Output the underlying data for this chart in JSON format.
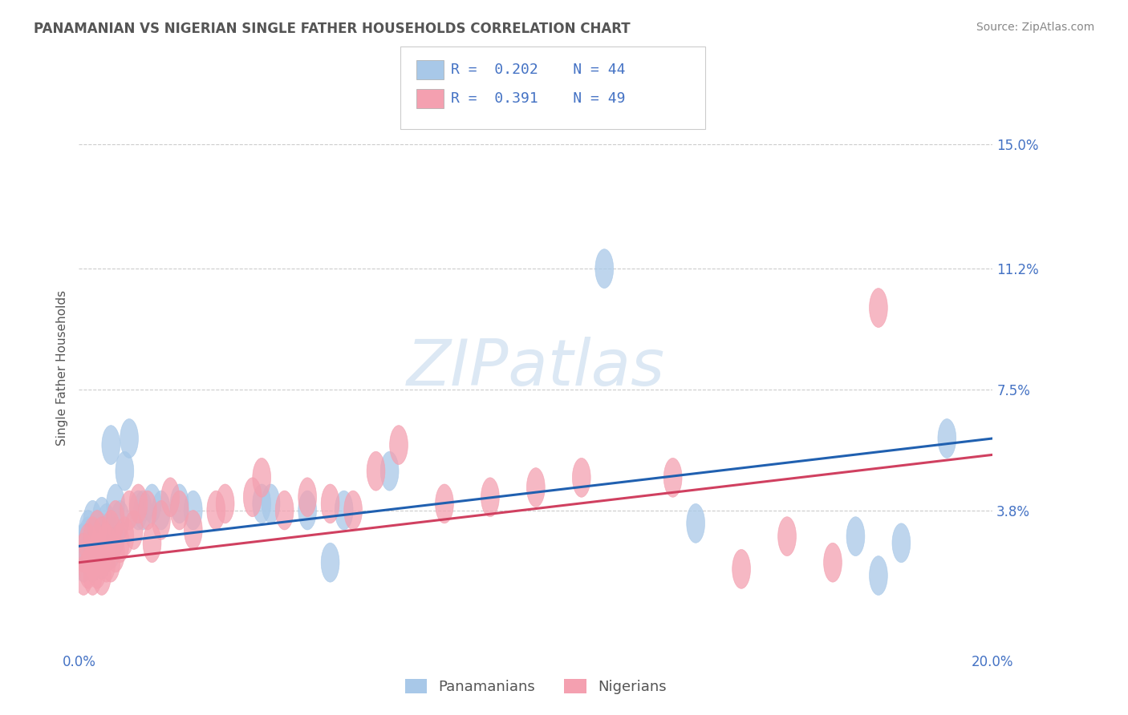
{
  "title": "PANAMANIAN VS NIGERIAN SINGLE FATHER HOUSEHOLDS CORRELATION CHART",
  "source": "Source: ZipAtlas.com",
  "ylabel": "Single Father Households",
  "y_tick_labels": [
    "3.8%",
    "7.5%",
    "11.2%",
    "15.0%"
  ],
  "y_tick_values": [
    0.038,
    0.075,
    0.112,
    0.15
  ],
  "xlim": [
    0.0,
    0.2
  ],
  "ylim": [
    -0.005,
    0.168
  ],
  "legend_labels": [
    "Panamanians",
    "Nigerians"
  ],
  "blue_color": "#a8c8e8",
  "pink_color": "#f4a0b0",
  "blue_line_color": "#2060b0",
  "pink_line_color": "#d04060",
  "text_color": "#4472c4",
  "watermark": "ZIPatlas",
  "watermark_color": "#dce8f4",
  "title_color": "#555555",
  "source_color": "#888888",
  "background_color": "#ffffff",
  "grid_color": "#cccccc",
  "panamanian_x": [
    0.001,
    0.001,
    0.002,
    0.002,
    0.002,
    0.003,
    0.003,
    0.003,
    0.003,
    0.004,
    0.004,
    0.004,
    0.005,
    0.005,
    0.005,
    0.005,
    0.006,
    0.006,
    0.006,
    0.007,
    0.007,
    0.008,
    0.008,
    0.009,
    0.01,
    0.011,
    0.013,
    0.014,
    0.016,
    0.018,
    0.022,
    0.025,
    0.04,
    0.042,
    0.05,
    0.055,
    0.058,
    0.068,
    0.115,
    0.135,
    0.17,
    0.175,
    0.18,
    0.19
  ],
  "panamanian_y": [
    0.022,
    0.028,
    0.025,
    0.03,
    0.032,
    0.022,
    0.026,
    0.03,
    0.035,
    0.024,
    0.028,
    0.032,
    0.023,
    0.027,
    0.031,
    0.036,
    0.025,
    0.03,
    0.034,
    0.026,
    0.058,
    0.03,
    0.04,
    0.035,
    0.05,
    0.06,
    0.038,
    0.038,
    0.04,
    0.038,
    0.04,
    0.038,
    0.04,
    0.04,
    0.038,
    0.022,
    0.038,
    0.05,
    0.112,
    0.034,
    0.03,
    0.018,
    0.028,
    0.06
  ],
  "nigerian_x": [
    0.001,
    0.001,
    0.002,
    0.002,
    0.003,
    0.003,
    0.003,
    0.004,
    0.004,
    0.004,
    0.005,
    0.005,
    0.005,
    0.006,
    0.006,
    0.007,
    0.007,
    0.008,
    0.008,
    0.009,
    0.01,
    0.011,
    0.012,
    0.013,
    0.015,
    0.016,
    0.018,
    0.02,
    0.022,
    0.025,
    0.03,
    0.032,
    0.038,
    0.04,
    0.045,
    0.05,
    0.055,
    0.06,
    0.065,
    0.07,
    0.08,
    0.09,
    0.1,
    0.11,
    0.13,
    0.145,
    0.155,
    0.165,
    0.175
  ],
  "nigerian_y": [
    0.018,
    0.025,
    0.02,
    0.028,
    0.018,
    0.023,
    0.03,
    0.02,
    0.025,
    0.032,
    0.018,
    0.024,
    0.03,
    0.022,
    0.028,
    0.022,
    0.032,
    0.025,
    0.035,
    0.028,
    0.03,
    0.038,
    0.032,
    0.04,
    0.038,
    0.028,
    0.035,
    0.042,
    0.038,
    0.032,
    0.038,
    0.04,
    0.042,
    0.048,
    0.038,
    0.042,
    0.04,
    0.038,
    0.05,
    0.058,
    0.04,
    0.042,
    0.045,
    0.048,
    0.048,
    0.02,
    0.03,
    0.022,
    0.1
  ],
  "pan_trend_x0": 0.0,
  "pan_trend_y0": 0.027,
  "pan_trend_x1": 0.2,
  "pan_trend_y1": 0.06,
  "nig_trend_x0": 0.0,
  "nig_trend_y0": 0.022,
  "nig_trend_x1": 0.2,
  "nig_trend_y1": 0.055
}
